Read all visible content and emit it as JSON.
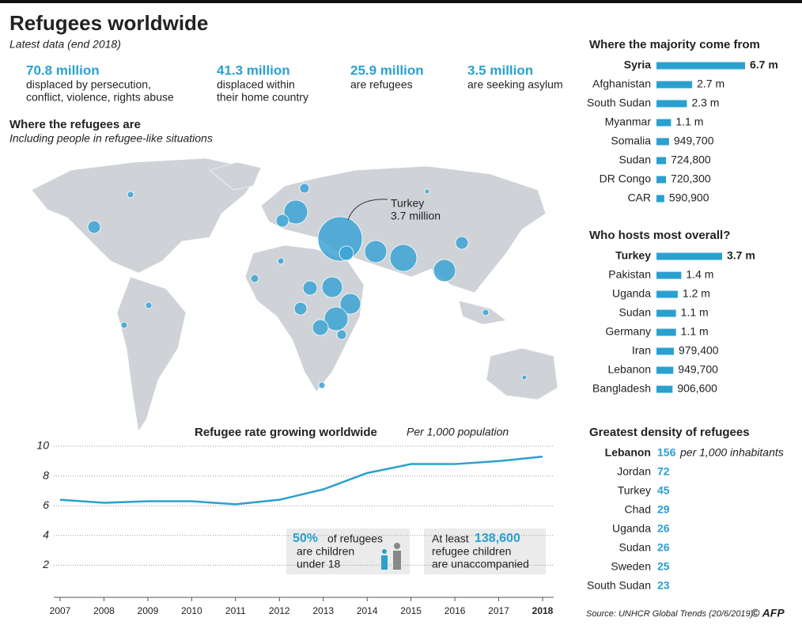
{
  "title": "Refugees worldwide",
  "subtitle": "Latest data (end 2018)",
  "stats": [
    {
      "value": "70.8 million",
      "lines": [
        "displaced by persecution,",
        "conflict, violence, rights abuse"
      ]
    },
    {
      "value": "41.3 million",
      "lines": [
        "displaced within",
        "their home country"
      ]
    },
    {
      "value": "25.9 million",
      "lines": [
        "are refugees"
      ]
    },
    {
      "value": "3.5 million",
      "lines": [
        "are seeking asylum"
      ]
    }
  ],
  "map": {
    "title": "Where the refugees are",
    "subtitle": "Including people in refugee-like situations",
    "annotation": [
      "Turkey",
      "3.7 million"
    ]
  },
  "chart_data": [
    {
      "type": "hbar",
      "title": "Where the majority come from",
      "color": "#2aa0cf",
      "categories": [
        "Syria",
        "Afghanistan",
        "South Sudan",
        "Myanmar",
        "Somalia",
        "Sudan",
        "DR Congo",
        "CAR"
      ],
      "values": [
        6700000,
        2700000,
        2300000,
        1100000,
        949700,
        724800,
        720300,
        590900
      ],
      "value_labels": [
        "6.7 m",
        "2.7 m",
        "2.3 m",
        "1.1 m",
        "949,700",
        "724,800",
        "720,300",
        "590,900"
      ]
    },
    {
      "type": "hbar",
      "title": "Who hosts most overall?",
      "color": "#2aa0cf",
      "categories": [
        "Turkey",
        "Pakistan",
        "Uganda",
        "Sudan",
        "Germany",
        "Iran",
        "Lebanon",
        "Bangladesh"
      ],
      "values": [
        3700000,
        1400000,
        1200000,
        1100000,
        1100000,
        979400,
        949700,
        906600
      ],
      "value_labels": [
        "3.7 m",
        "1.4 m",
        "1.2 m",
        "1.1 m",
        "1.1 m",
        "979,400",
        "949,700",
        "906,600"
      ]
    },
    {
      "type": "line",
      "title": "Refugee rate growing worldwide",
      "subtitle": "Per 1,000 population",
      "color": "#2aa0cf",
      "categories": [
        "2007",
        "2008",
        "2009",
        "2010",
        "2011",
        "2012",
        "2013",
        "2014",
        "2015",
        "2016",
        "2017",
        "2018"
      ],
      "values": [
        6.4,
        6.2,
        6.3,
        6.3,
        6.1,
        6.4,
        7.1,
        8.2,
        8.8,
        8.8,
        9.0,
        9.3
      ],
      "ylim": [
        0,
        10
      ],
      "yticks": [
        2,
        4,
        6,
        8,
        10
      ],
      "grid": true,
      "annotations": [
        {
          "highlight": "50%",
          "lines": [
            "of refugees",
            "are children",
            "under 18"
          ]
        },
        {
          "lead": "At least",
          "highlight": "138,600",
          "lines": [
            "refugee children",
            "are unaccompanied"
          ]
        }
      ]
    }
  ],
  "density": {
    "title": "Greatest density of refugees",
    "unit": "per 1,000 inhabitants",
    "rows": [
      [
        "Lebanon",
        "156"
      ],
      [
        "Jordan",
        "72"
      ],
      [
        "Turkey",
        "45"
      ],
      [
        "Chad",
        "29"
      ],
      [
        "Uganda",
        "26"
      ],
      [
        "Sudan",
        "26"
      ],
      [
        "Sweden",
        "25"
      ],
      [
        "South Sudan",
        "23"
      ]
    ]
  },
  "source": "Source: UNHCR Global Trends (20/6/2019)",
  "credit": "© AFP"
}
